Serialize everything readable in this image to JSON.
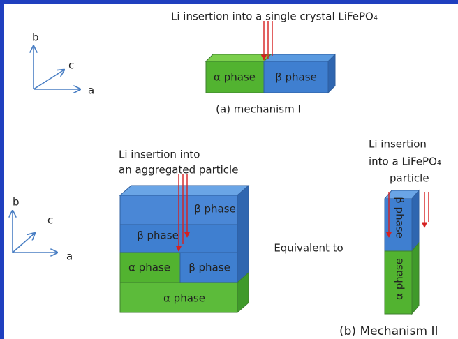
{
  "top": {
    "caption": "Li insertion into a single crystal LiFePO₄",
    "axes": {
      "b": "b",
      "c": "c",
      "a": "a"
    },
    "alpha": "α phase",
    "beta": "β phase",
    "label": "(a) mechanism I"
  },
  "bottom": {
    "caption": [
      "Li insertion into",
      "an aggregated particle"
    ],
    "axes": {
      "b": "b",
      "c": "c",
      "a": "a"
    },
    "layers": [
      "β phase",
      "β phase",
      "α phase",
      "β phase",
      "α phase"
    ],
    "equivalent": "Equivalent to",
    "particle_caption": [
      "Li insertion",
      "into a LiFePO₄",
      "particle"
    ],
    "particle_beta": "β phase",
    "particle_alpha": "α phase",
    "label": "(b) Mechanism II"
  }
}
